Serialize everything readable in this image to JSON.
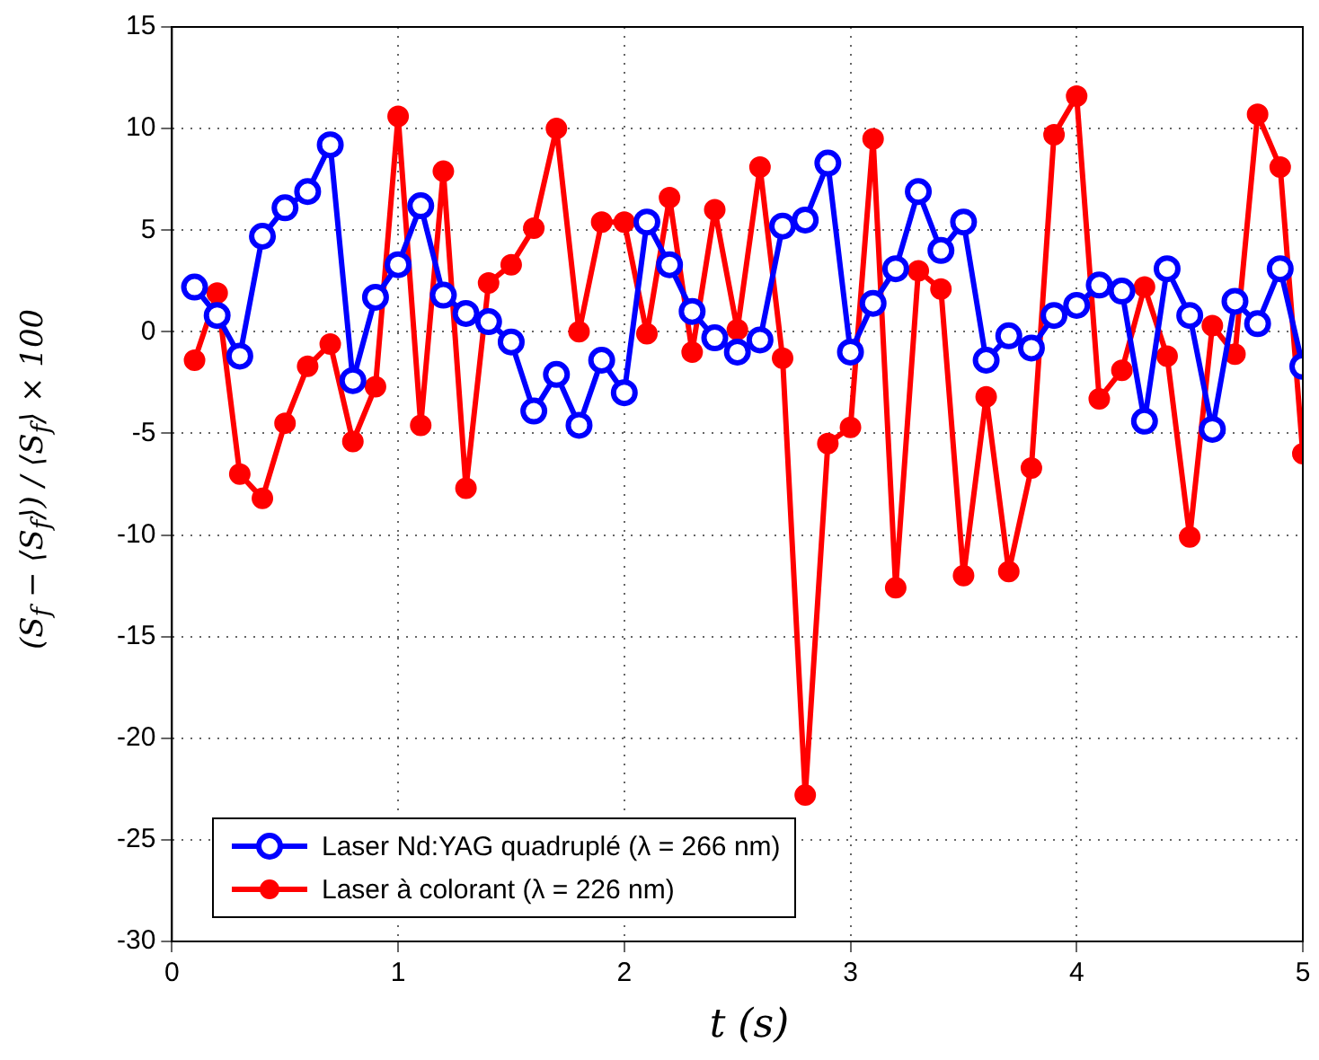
{
  "chart_data": {
    "type": "line",
    "xlabel": "t (s)",
    "ylabel": "(S$_{f}$ − ⟨S$_{f}$⟩) / ⟨S$_{f}$⟩ × 100",
    "x": [
      0.1,
      0.2,
      0.3,
      0.4,
      0.5,
      0.6,
      0.7,
      0.8,
      0.9,
      1.0,
      1.1,
      1.2,
      1.3,
      1.4,
      1.5,
      1.6,
      1.7,
      1.8,
      1.9,
      2.0,
      2.1,
      2.2,
      2.3,
      2.4,
      2.5,
      2.6,
      2.7,
      2.8,
      2.9,
      3.0,
      3.1,
      3.2,
      3.3,
      3.4,
      3.5,
      3.6,
      3.7,
      3.8,
      3.9,
      4.0,
      4.1,
      4.2,
      4.3,
      4.4,
      4.5,
      4.6,
      4.7,
      4.8,
      4.9,
      5.0
    ],
    "series": [
      {
        "name": "Laser Nd:YAG quadruplé (λ = 266 nm)",
        "color": "#0000ff",
        "marker": "circle",
        "values": [
          2.2,
          0.8,
          -1.2,
          4.7,
          6.1,
          6.9,
          9.2,
          -2.4,
          1.7,
          3.3,
          6.2,
          1.8,
          0.9,
          0.5,
          -0.5,
          -3.9,
          -2.1,
          -4.6,
          -1.4,
          -3.0,
          5.4,
          3.3,
          1.0,
          -0.3,
          -1.0,
          -0.4,
          5.2,
          5.5,
          8.3,
          -1.0,
          1.4,
          3.1,
          6.9,
          4.0,
          5.4,
          -1.4,
          -0.2,
          -0.8,
          0.8,
          1.3,
          2.3,
          2.0,
          -4.4,
          3.1,
          0.8,
          -4.8,
          1.5,
          0.4,
          3.1,
          -1.7
        ]
      },
      {
        "name": "Laser à colorant (λ = 226 nm)",
        "color": "#ff0000",
        "marker": "circle",
        "values": [
          -1.4,
          1.9,
          -7.0,
          -8.2,
          -4.5,
          -1.7,
          -0.6,
          -5.4,
          -2.7,
          10.6,
          -4.6,
          7.9,
          -7.7,
          2.4,
          3.3,
          5.1,
          10.0,
          0.0,
          5.4,
          5.4,
          -0.1,
          6.6,
          -1.0,
          6.0,
          0.1,
          8.1,
          -1.3,
          -22.8,
          -5.5,
          -4.7,
          9.5,
          -12.6,
          3.0,
          2.1,
          -12.0,
          -3.2,
          -11.8,
          -6.7,
          9.7,
          11.6,
          -3.3,
          -1.9,
          2.2,
          -1.2,
          -10.1,
          0.3,
          -1.1,
          10.7,
          8.1,
          -6.0
        ]
      }
    ],
    "xlim": [
      0,
      5
    ],
    "xticks": [
      0,
      1,
      2,
      3,
      4,
      5
    ],
    "ylim": [
      -30,
      15
    ],
    "yticks": [
      -30,
      -25,
      -20,
      -15,
      -10,
      -5,
      0,
      5,
      10,
      15
    ],
    "grid": true,
    "legend": "bottom left",
    "line_style": "solid"
  }
}
